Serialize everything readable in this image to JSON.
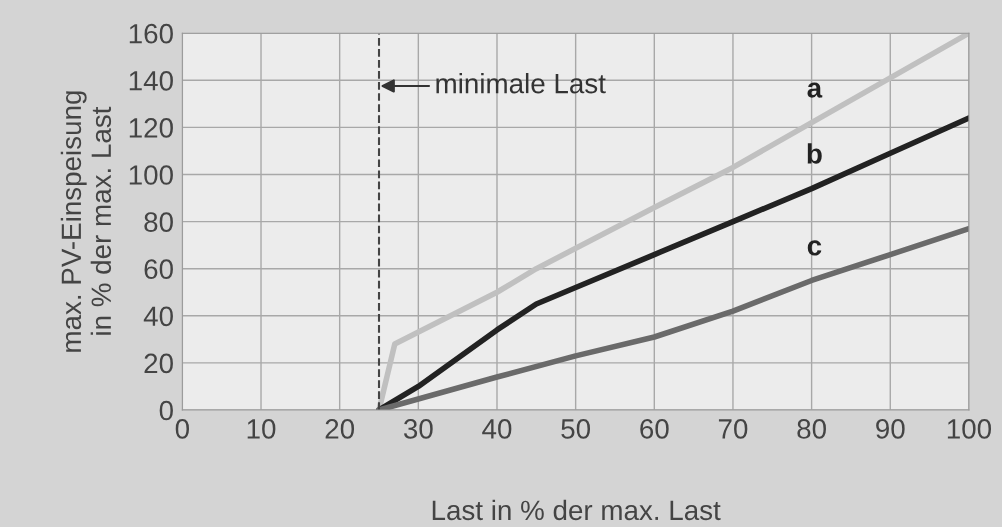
{
  "chart_data": {
    "type": "line",
    "xlabel": "Last in % der max. Last",
    "ylabel": "max. PV-Einspeisung\nin % der max. Last",
    "xlim": [
      0,
      100
    ],
    "xticks": [
      0,
      10,
      20,
      30,
      40,
      50,
      60,
      70,
      80,
      90,
      100
    ],
    "ylim": [
      0,
      160
    ],
    "yticks": [
      0,
      20,
      40,
      60,
      80,
      100,
      120,
      140,
      160
    ],
    "grid": true,
    "marker": "none",
    "line_style": "solid",
    "series": [
      {
        "name": "a",
        "color": "#c0c0c0",
        "x": [
          25,
          27,
          40,
          45,
          60,
          70,
          80,
          90,
          100
        ],
        "values": [
          0,
          28,
          50,
          60,
          86,
          103,
          122,
          141,
          160
        ]
      },
      {
        "name": "b",
        "color": "#222222",
        "x": [
          25,
          30,
          35,
          40,
          45,
          50,
          60,
          70,
          80,
          90,
          100
        ],
        "values": [
          0,
          10,
          22,
          34,
          45,
          52,
          66,
          80,
          94,
          109,
          124
        ]
      },
      {
        "name": "c",
        "color": "#6a6a6a",
        "x": [
          25,
          40,
          50,
          60,
          70,
          80,
          90,
          100
        ],
        "values": [
          0,
          14,
          23,
          31,
          42,
          55,
          66,
          77
        ]
      }
    ],
    "ref_lines": [
      {
        "axis": "x",
        "value": 25,
        "label": "minimale Last",
        "color": "#444444",
        "line_style": "dashed"
      }
    ]
  }
}
